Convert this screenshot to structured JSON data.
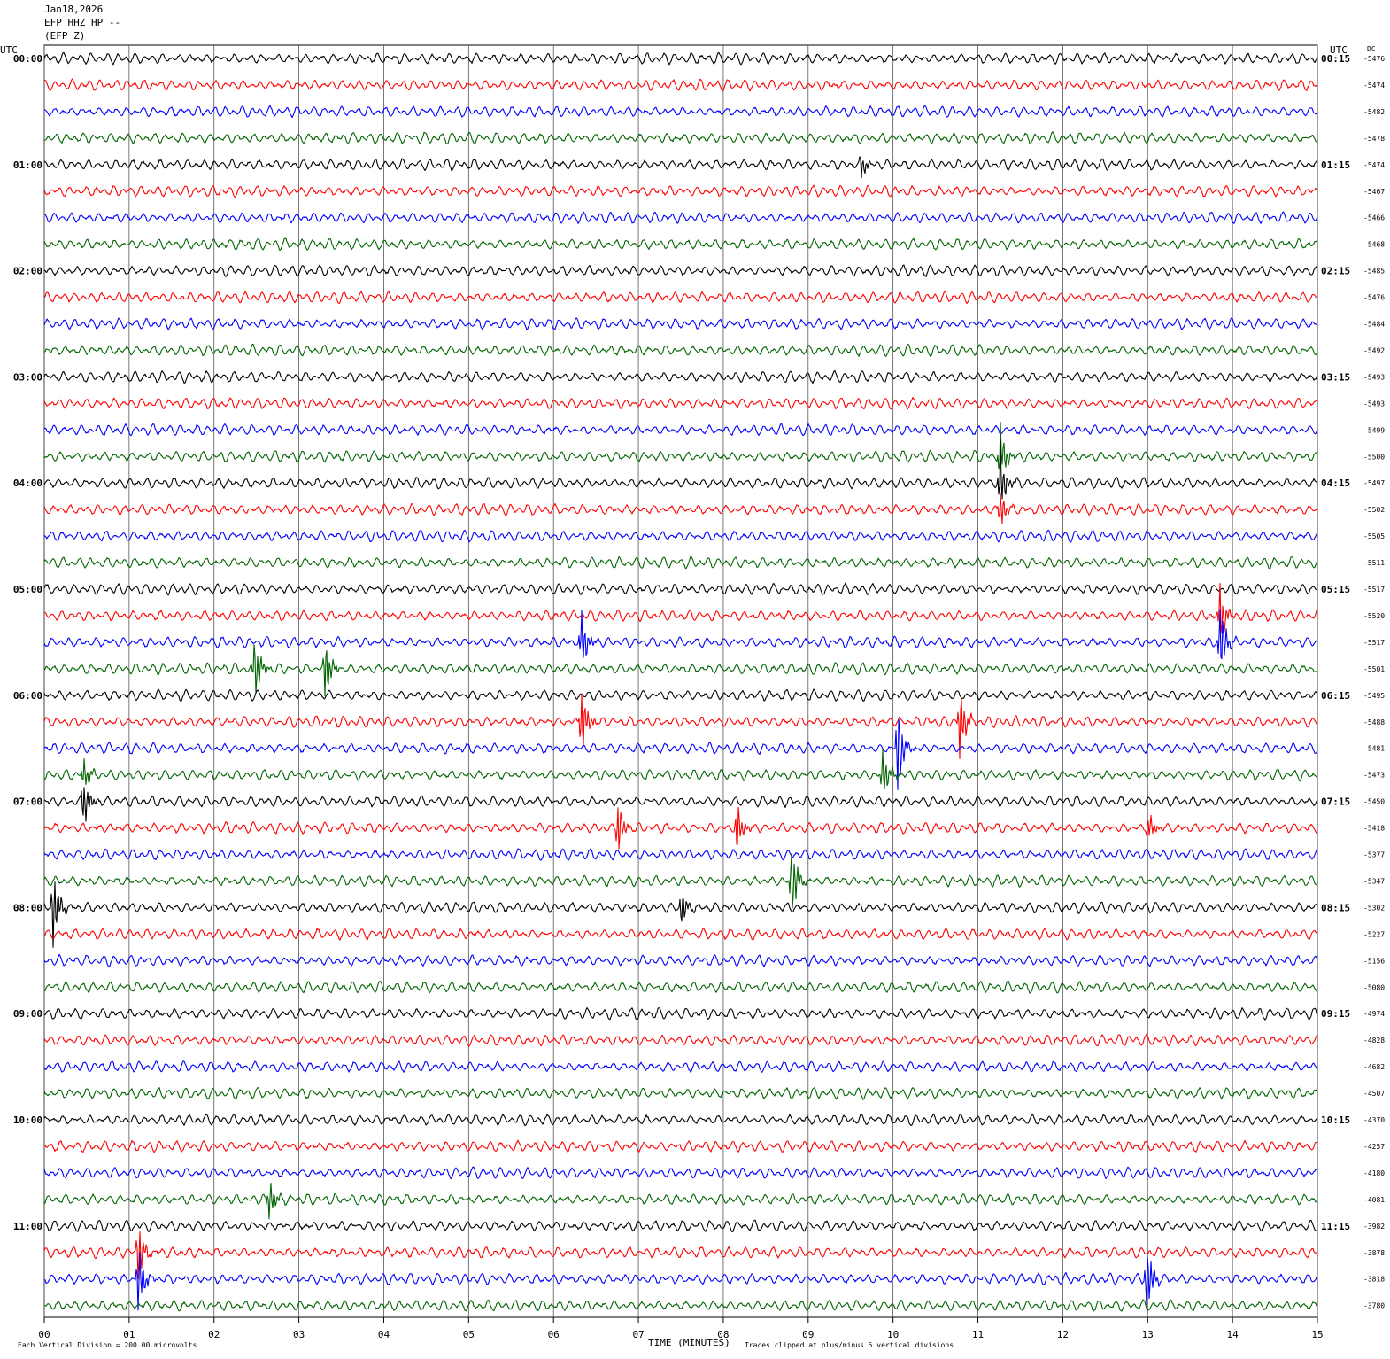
{
  "header": {
    "date": "Jan18,2026",
    "channel": "EFP HHZ HP --",
    "station": "(EFP Z)"
  },
  "axes": {
    "left_unit": "UTC",
    "right_unit": "UTC",
    "dc_label": "DC",
    "xlabel": "TIME (MINUTES)",
    "scale_note": "Each Vertical Division =  200.00 microvolts",
    "clip_note": "Traces clipped at plus/minus 5 vertical divisions"
  },
  "chart_data": {
    "type": "line",
    "title": "",
    "x_ticks": [
      "00",
      "01",
      "02",
      "03",
      "04",
      "05",
      "06",
      "07",
      "08",
      "09",
      "10",
      "11",
      "12",
      "13",
      "14",
      "15"
    ],
    "xlim": [
      0,
      15
    ],
    "grid": true,
    "left_time_labels": [
      "00:00",
      "01:00",
      "02:00",
      "03:00",
      "04:00",
      "05:00",
      "06:00",
      "07:00",
      "08:00",
      "09:00",
      "10:00",
      "11:00"
    ],
    "right_time_labels": [
      "00:15",
      "01:15",
      "02:15",
      "03:15",
      "04:15",
      "05:15",
      "06:15",
      "07:15",
      "08:15",
      "09:15",
      "10:15",
      "11:15"
    ],
    "trace_colors": [
      "#000000",
      "#ff0000",
      "#0000ff",
      "#006400"
    ],
    "dc_offsets": [
      "-5476",
      "-5474",
      "-5482",
      "-5478",
      "-5474",
      "-5467",
      "-5466",
      "-5468",
      "-5485",
      "-5476",
      "-5484",
      "-5492",
      "-5493",
      "-5493",
      "-5499",
      "-5500",
      "-5497",
      "-5502",
      "-5505",
      "-5511",
      "-5517",
      "-5520",
      "-5517",
      "-5501",
      "-5495",
      "-5488",
      "-5481",
      "-5473",
      "-5450",
      "-5418",
      "-5377",
      "-5347",
      "-5302",
      "-5227",
      "-5156",
      "-5080",
      "-4974",
      "-4828",
      "-4682",
      "-4507",
      "-4370",
      "-4257",
      "-4180",
      "-4081",
      "-3982",
      "-3878",
      "-3818",
      "-3780"
    ],
    "events": [
      {
        "trace": 4,
        "minute": 9.62,
        "amplitude": 20
      },
      {
        "trace": 15,
        "minute": 11.25,
        "amplitude": 50
      },
      {
        "trace": 16,
        "minute": 11.25,
        "amplitude": 60
      },
      {
        "trace": 17,
        "minute": 11.25,
        "amplitude": 35
      },
      {
        "trace": 21,
        "minute": 13.85,
        "amplitude": 40
      },
      {
        "trace": 22,
        "minute": 13.85,
        "amplitude": 55
      },
      {
        "trace": 22,
        "minute": 6.32,
        "amplitude": 50
      },
      {
        "trace": 23,
        "minute": 2.47,
        "amplitude": 50
      },
      {
        "trace": 23,
        "minute": 3.3,
        "amplitude": 45
      },
      {
        "trace": 25,
        "minute": 6.32,
        "amplitude": 60
      },
      {
        "trace": 25,
        "minute": 10.78,
        "amplitude": 55
      },
      {
        "trace": 26,
        "minute": 10.05,
        "amplitude": 70
      },
      {
        "trace": 27,
        "minute": 9.87,
        "amplitude": 45
      },
      {
        "trace": 27,
        "minute": 0.45,
        "amplitude": 30
      },
      {
        "trace": 28,
        "minute": 0.45,
        "amplitude": 45
      },
      {
        "trace": 29,
        "minute": 6.75,
        "amplitude": 45
      },
      {
        "trace": 29,
        "minute": 8.15,
        "amplitude": 45
      },
      {
        "trace": 29,
        "minute": 13.0,
        "amplitude": 25
      },
      {
        "trace": 31,
        "minute": 8.8,
        "amplitude": 55
      },
      {
        "trace": 32,
        "minute": 0.1,
        "amplitude": 60
      },
      {
        "trace": 32,
        "minute": 7.5,
        "amplitude": 30
      },
      {
        "trace": 43,
        "minute": 2.63,
        "amplitude": 40
      },
      {
        "trace": 45,
        "minute": 1.1,
        "amplitude": 45
      },
      {
        "trace": 46,
        "minute": 1.1,
        "amplitude": 55
      },
      {
        "trace": 46,
        "minute": 12.98,
        "amplitude": 60
      }
    ]
  }
}
